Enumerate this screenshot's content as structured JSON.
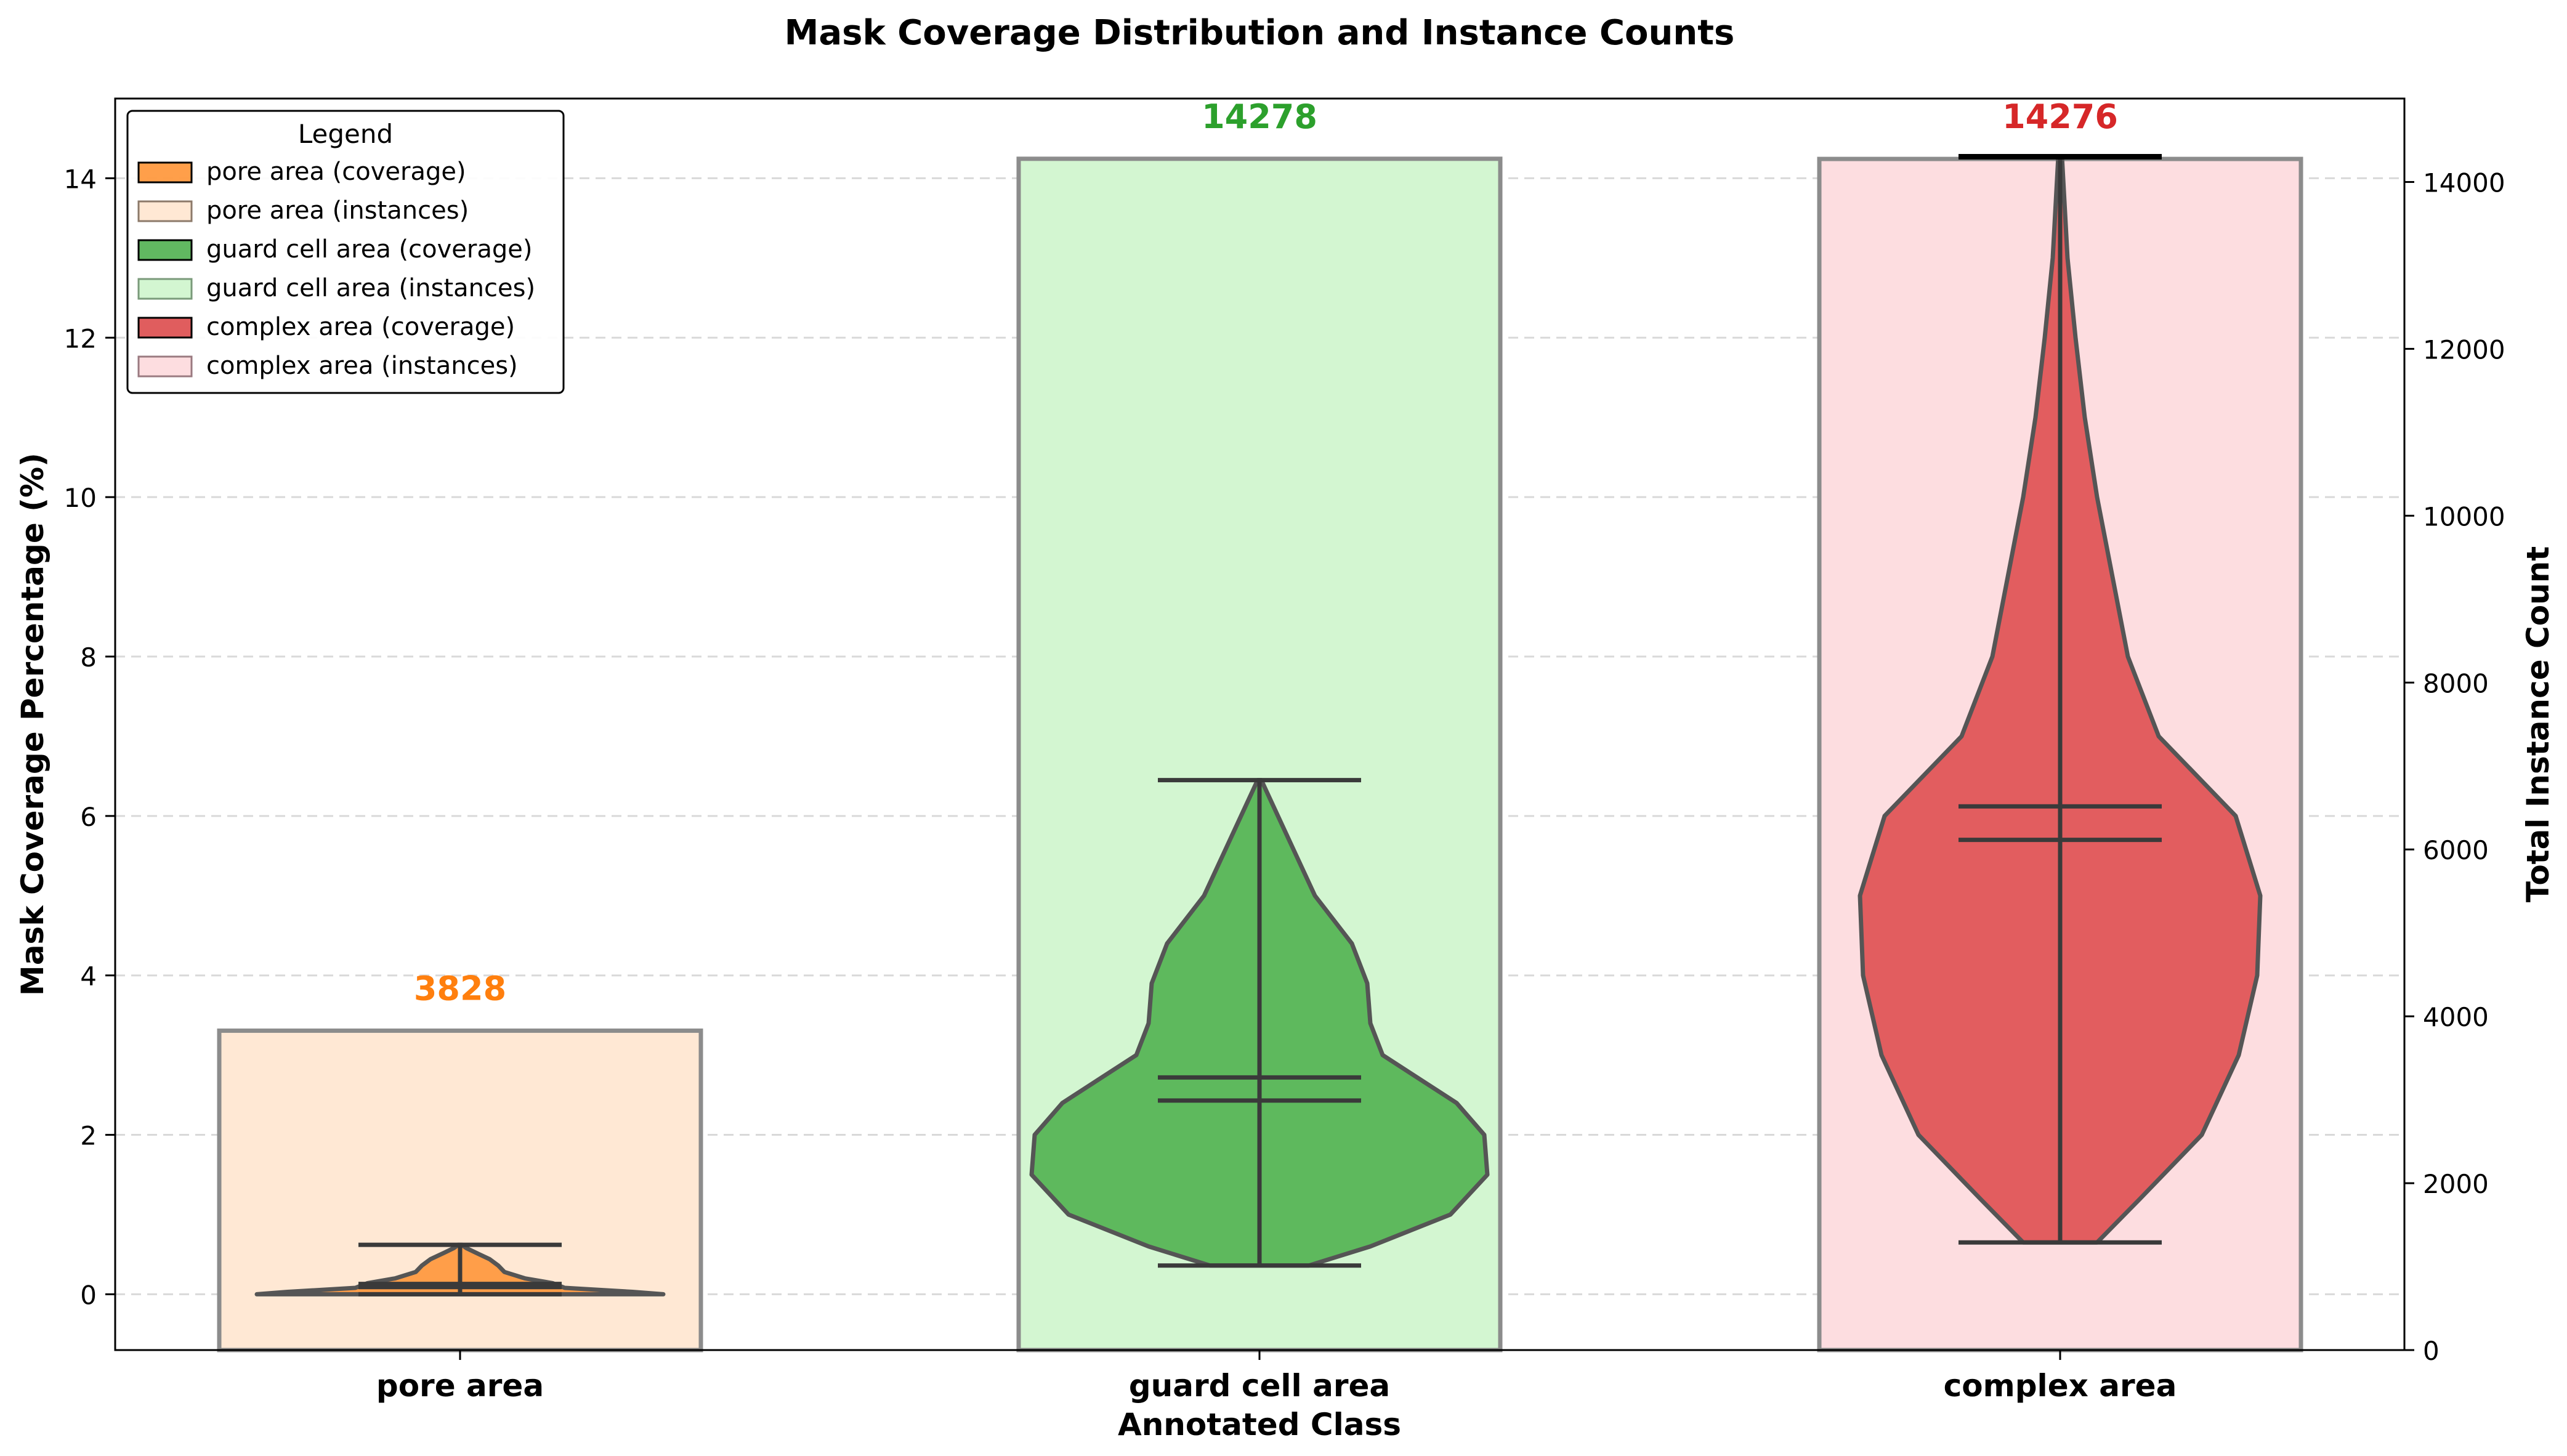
{
  "chart_data": {
    "type": "violin+bar",
    "title": "Mask Coverage Distribution and Instance Counts",
    "xlabel": "Annotated Class",
    "ylabel_left": "Mask Coverage Percentage (%)",
    "ylabel_right": "Total Instance Count",
    "ylim_left": [
      -0.7,
      15
    ],
    "ylim_right": [
      0,
      15000
    ],
    "yticks_left": [
      "0",
      "2",
      "4",
      "6",
      "8",
      "10",
      "12",
      "14"
    ],
    "yticks_right": [
      "0",
      "2000",
      "4000",
      "6000",
      "8000",
      "10000",
      "12000",
      "14000"
    ],
    "categories": [
      "pore area",
      "guard cell area",
      "complex area"
    ],
    "instance_counts": [
      3828,
      14278,
      14276
    ],
    "instance_labels": [
      "3828",
      "14278",
      "14276"
    ],
    "colors": {
      "pore": "#ff7f0e",
      "guard": "#2ca02c",
      "complex": "#d62728",
      "pore_bar": "#ffe8d4",
      "guard_bar": "#d3f6d1",
      "complex_bar": "#fddde0"
    },
    "coverage": [
      {
        "name": "pore area",
        "min": 0.0,
        "max": 0.62,
        "mean": 0.13,
        "median": 0.09
      },
      {
        "name": "guard cell area",
        "min": 0.36,
        "max": 6.45,
        "mean": 2.72,
        "median": 2.43
      },
      {
        "name": "complex area",
        "min": 0.65,
        "max": 14.27,
        "mean": 6.12,
        "median": 5.7
      }
    ],
    "legend": {
      "title": "Legend",
      "placement": "top-left",
      "entries": [
        "pore area (coverage)",
        "pore area (instances)",
        "guard cell area (coverage)",
        "guard cell area (instances)",
        "complex area (coverage)",
        "complex area (instances)"
      ]
    },
    "grid": "horizontal dashed"
  }
}
